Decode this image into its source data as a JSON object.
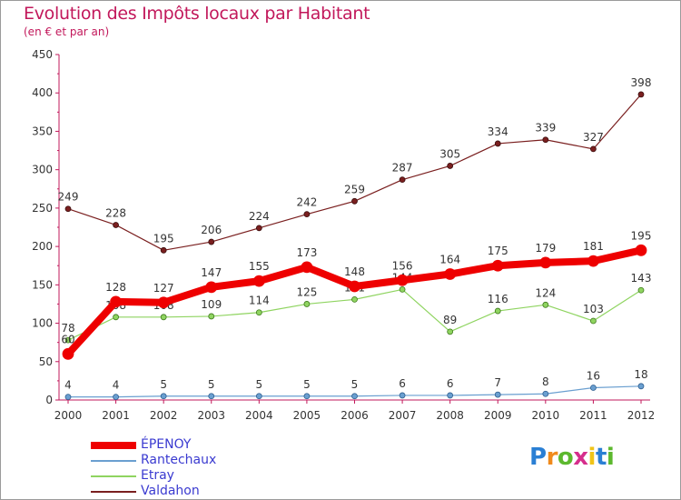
{
  "header": {
    "title": "Evolution des Impôts locaux par Habitant",
    "subtitle": "(en € et par an)"
  },
  "chart_data": {
    "type": "line",
    "title": "Evolution des Impôts locaux par Habitant",
    "subtitle": "(en € et par an)",
    "xlabel": "",
    "ylabel": "",
    "x": [
      "2000",
      "2001",
      "2002",
      "2003",
      "2004",
      "2005",
      "2006",
      "2007",
      "2008",
      "2009",
      "2010",
      "2011",
      "2012"
    ],
    "ylim": [
      0,
      450
    ],
    "yticks": [
      0,
      50,
      100,
      150,
      200,
      250,
      300,
      350,
      400,
      450
    ],
    "grid": false,
    "legend_position": "bottom-left",
    "series": [
      {
        "name": "Valdahon",
        "color": "#7a1f1f",
        "values": [
          249,
          228,
          195,
          206,
          224,
          242,
          259,
          287,
          305,
          334,
          339,
          327,
          398
        ]
      },
      {
        "name": "Etray",
        "color": "#8fd460",
        "values": [
          78,
          108,
          108,
          109,
          114,
          125,
          131,
          144,
          89,
          116,
          124,
          103,
          143
        ]
      },
      {
        "name": "Rantechaux",
        "color": "#6a9fd0",
        "values": [
          4,
          4,
          5,
          5,
          5,
          5,
          5,
          6,
          6,
          7,
          8,
          16,
          18
        ]
      },
      {
        "name": "ÉPENOY",
        "color": "#ee0000",
        "values": [
          60,
          128,
          127,
          147,
          155,
          173,
          148,
          156,
          164,
          175,
          179,
          181,
          195
        ]
      }
    ],
    "labels": {
      "Valdahon": [
        "249",
        "228",
        "195",
        "206",
        "224",
        "242",
        "259",
        "287",
        "305",
        "334",
        "339",
        "327",
        "398"
      ],
      "Etray": [
        "78",
        "108",
        "108",
        "109",
        "114",
        "125",
        "131",
        "144",
        "89",
        "116",
        "124",
        "103",
        "143"
      ],
      "Rantechaux": [
        "4",
        "4",
        "5",
        "5",
        "5",
        "5",
        "5",
        "6",
        "6",
        "7",
        "8",
        "16",
        "18"
      ],
      "ÉPENOY": [
        "60",
        "128",
        "127",
        "147",
        "155",
        "173",
        "148",
        "156",
        "164",
        "175",
        "179",
        "181",
        "195"
      ]
    },
    "legend": [
      "ÉPENOY",
      "Rantechaux",
      "Etray",
      "Valdahon"
    ]
  },
  "logo": {
    "letters": [
      "P",
      "r",
      "o",
      "x",
      "i",
      "t",
      "i"
    ],
    "colors": [
      "#2a7fd4",
      "#f08a1c",
      "#5cb82e",
      "#d62e8c",
      "#f0c419",
      "#2a7fd4",
      "#5cb82e"
    ]
  }
}
